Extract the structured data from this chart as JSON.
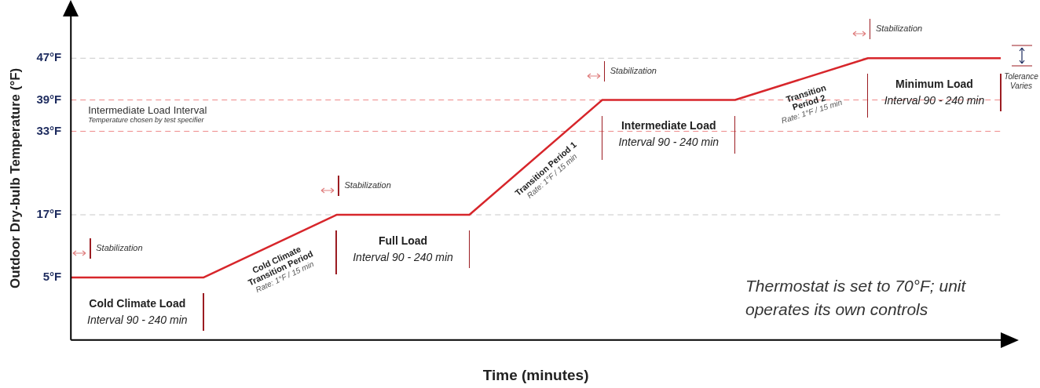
{
  "chart_data": {
    "type": "line",
    "xlabel": "Time (minutes)",
    "ylabel": "Outdoor Dry-bulb Temperature (°F)",
    "categories": [
      null,
      null,
      null,
      null,
      null,
      null,
      null,
      null
    ],
    "series": [
      {
        "color": "#d7262b",
        "values": [
          5,
          5,
          17,
          17,
          39,
          39,
          47,
          47
        ]
      }
    ],
    "ylim": [
      -7,
      55
    ],
    "yticks": [
      {
        "value": 5,
        "label": "5°F"
      },
      {
        "value": 17,
        "label": "17°F"
      },
      {
        "value": 33,
        "label": "33°F"
      },
      {
        "value": 39,
        "label": "39°F"
      },
      {
        "value": 47,
        "label": "47°F"
      }
    ],
    "tick_labels": "y",
    "grid": false,
    "legend": false,
    "marker": "none",
    "line_style": "solid",
    "ref_lines": [
      {
        "axis": "y",
        "value": 47,
        "color": "#c8c8c8",
        "line_style": "dashed"
      },
      {
        "axis": "y",
        "value": 39,
        "color": "#ee8a8a",
        "line_style": "dashed"
      },
      {
        "axis": "y",
        "value": 33,
        "color": "#ee8a8a",
        "line_style": "dashed"
      },
      {
        "axis": "y",
        "value": 17,
        "color": "#c8c8c8",
        "line_style": "dashed"
      }
    ],
    "annotations": [
      "Cold Climate Load",
      "Interval 90 - 240 min",
      "Cold Climate Transition Period",
      "Rate: 1°F / 15 min",
      "Full Load",
      "Interval 90 - 240 min",
      "Transition Period 1",
      "Rate: 1°F / 15 min",
      "Intermediate Load",
      "Interval 90 - 240 min",
      "Transition Period 2",
      "Rate: 1°F / 15 min",
      "Minimum Load",
      "Interval 90 - 240 min",
      "Stabilization",
      "Stabilization",
      "Stabilization",
      "Stabilization",
      "Intermediate Load Interval",
      "Temperature chosen by test specifier",
      "Tolerance Varies",
      "Thermostat is set to 70°F; unit operates its own controls"
    ]
  }
}
